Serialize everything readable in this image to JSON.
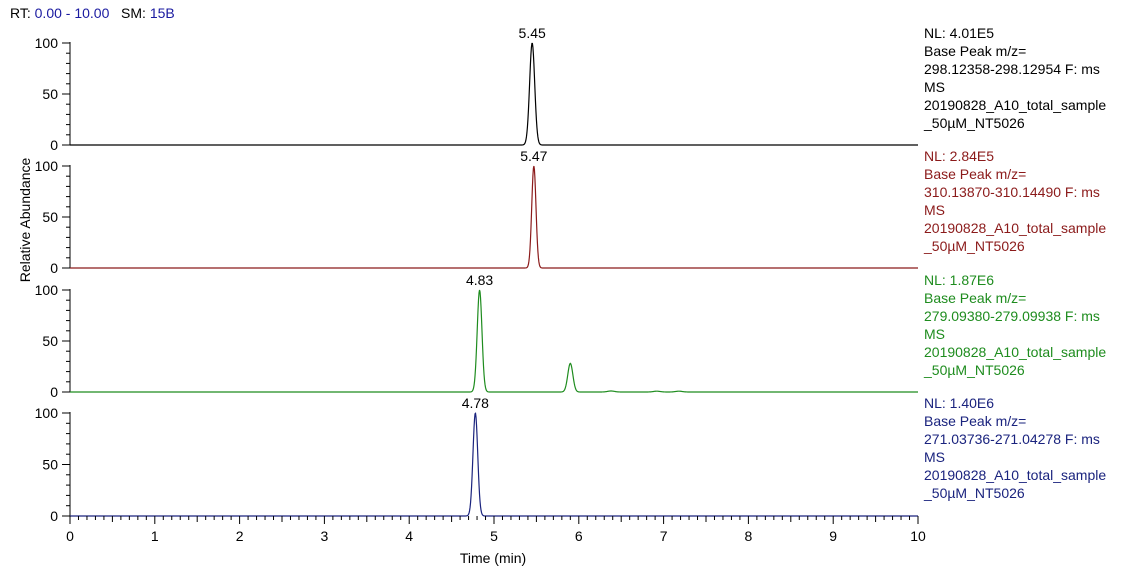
{
  "header": {
    "rt_label": "RT:",
    "rt_value": "0.00 - 10.00",
    "sm_label": "SM:",
    "sm_value": "15B"
  },
  "chart_data": {
    "type": "line",
    "xlabel": "Time (min)",
    "ylabel": "Relative Abundance",
    "xlim": [
      0,
      10
    ],
    "ylim": [
      0,
      100
    ],
    "x_ticks": [
      "0",
      "1",
      "2",
      "3",
      "4",
      "5",
      "6",
      "7",
      "8",
      "9",
      "10"
    ],
    "y_ticks": [
      "0",
      "50",
      "100"
    ],
    "grid": false,
    "panels": [
      {
        "color": "#000000",
        "peak_label": "5.45",
        "peaks": [
          {
            "x": 5.45,
            "y": 100,
            "width": 0.03
          }
        ],
        "nl": "NL: 4.01E5",
        "lines": [
          "Base Peak m/z=",
          "298.12358-298.12954 F: ms",
          "MS",
          "20190828_A10_total_sample",
          "_50µM_NT5026"
        ]
      },
      {
        "color": "#8b1a1a",
        "peak_label": "5.47",
        "peaks": [
          {
            "x": 5.47,
            "y": 100,
            "width": 0.025
          }
        ],
        "nl": "NL: 2.84E5",
        "lines": [
          "Base Peak m/z=",
          "310.13870-310.14490 F: ms",
          "MS",
          "20190828_A10_total_sample",
          "_50µM_NT5026"
        ]
      },
      {
        "color": "#1e8c1e",
        "peak_label": "4.83",
        "peaks": [
          {
            "x": 4.83,
            "y": 100,
            "width": 0.028
          },
          {
            "x": 5.9,
            "y": 28,
            "width": 0.03
          },
          {
            "x": 6.38,
            "y": 1,
            "width": 0.04
          },
          {
            "x": 6.92,
            "y": 0.8,
            "width": 0.04
          },
          {
            "x": 7.18,
            "y": 0.8,
            "width": 0.04
          }
        ],
        "nl": "NL: 1.87E6",
        "lines": [
          "Base Peak m/z=",
          "279.09380-279.09938 F: ms",
          "MS",
          "20190828_A10_total_sample",
          "_50µM_NT5026"
        ]
      },
      {
        "color": "#1a237e",
        "peak_label": "4.78",
        "peaks": [
          {
            "x": 4.78,
            "y": 100,
            "width": 0.028
          }
        ],
        "nl": "NL: 1.40E6",
        "lines": [
          "Base Peak m/z=",
          "271.03736-271.04278 F: ms",
          "MS",
          "20190828_A10_total_sample",
          "_50µM_NT5026"
        ]
      }
    ]
  }
}
